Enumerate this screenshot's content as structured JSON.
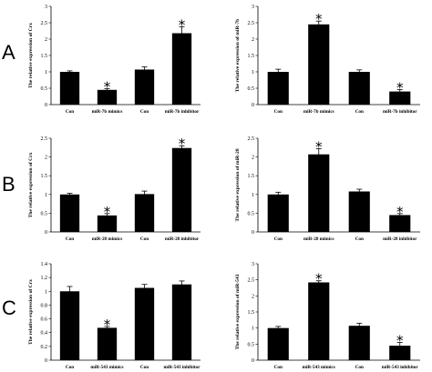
{
  "panel_labels": [
    "A",
    "B",
    "C"
  ],
  "chart_data": [
    {
      "type": "bar",
      "row": 0,
      "col": 0,
      "ylabel": "The relative expression of Crx",
      "ylim": [
        0,
        3
      ],
      "ticks": [
        "0",
        "0.5",
        "1",
        "1.5",
        "2",
        "2.5",
        "3"
      ],
      "categories": [
        "Con",
        "miR-7b mimics",
        "Con",
        "miR-7b inhibitor"
      ],
      "values": [
        1.0,
        0.45,
        1.07,
        2.18
      ],
      "errors": [
        0.03,
        0.04,
        0.08,
        0.2
      ],
      "significant": [
        false,
        true,
        false,
        true
      ],
      "star": "*"
    },
    {
      "type": "bar",
      "row": 0,
      "col": 1,
      "ylabel": "The relative expression of miR-7b",
      "ylim": [
        0,
        3
      ],
      "ticks": [
        "0",
        "0.5",
        "1",
        "1.5",
        "2",
        "2.5",
        "3"
      ],
      "categories": [
        "Con",
        "miR-7b mimics",
        "Con",
        "miR-7b inhibitor"
      ],
      "values": [
        1.0,
        2.45,
        1.0,
        0.4
      ],
      "errors": [
        0.08,
        0.1,
        0.06,
        0.06
      ],
      "significant": [
        false,
        true,
        false,
        true
      ],
      "star": "*"
    },
    {
      "type": "bar",
      "row": 1,
      "col": 0,
      "ylabel": "The relative expression of Crx",
      "ylim": [
        0,
        2.5
      ],
      "ticks": [
        "0",
        "0.5",
        "1",
        "1.5",
        "2",
        "2.5"
      ],
      "categories": [
        "Con",
        "miR-28 mimics",
        "Con",
        "miR-28 inhibitor"
      ],
      "values": [
        1.0,
        0.44,
        1.01,
        2.24
      ],
      "errors": [
        0.03,
        0.05,
        0.08,
        0.06
      ],
      "significant": [
        false,
        true,
        false,
        true
      ],
      "star": "*"
    },
    {
      "type": "bar",
      "row": 1,
      "col": 1,
      "ylabel": "The relative expression of miR-28",
      "ylim": [
        0,
        2.5
      ],
      "ticks": [
        "0",
        "0.5",
        "1",
        "1.5",
        "2",
        "2.5"
      ],
      "categories": [
        "Con",
        "miR-28 mimics",
        "Con",
        "miR-28 inhibitor"
      ],
      "values": [
        1.0,
        2.07,
        1.08,
        0.45
      ],
      "errors": [
        0.06,
        0.15,
        0.06,
        0.04
      ],
      "significant": [
        false,
        true,
        false,
        true
      ],
      "star": "*"
    },
    {
      "type": "bar",
      "row": 2,
      "col": 0,
      "ylabel": "The relative expression of Crx",
      "ylim": [
        0,
        1.4
      ],
      "ticks": [
        "0",
        "0.2",
        "0.4",
        "0.6",
        "0.8",
        "1",
        "1.2",
        "1.4"
      ],
      "categories": [
        "Con",
        "miR-543 mimics",
        "Con",
        "miR-543 inhibitor"
      ],
      "values": [
        1.0,
        0.47,
        1.05,
        1.1
      ],
      "errors": [
        0.07,
        0.02,
        0.05,
        0.05
      ],
      "significant": [
        false,
        true,
        false,
        false
      ],
      "star": "*"
    },
    {
      "type": "bar",
      "row": 2,
      "col": 1,
      "ylabel": "The relative expression of miR-543",
      "ylim": [
        0,
        3
      ],
      "ticks": [
        "0",
        "0.5",
        "1",
        "1.5",
        "2",
        "2.5",
        "3"
      ],
      "categories": [
        "Con",
        "miR-543 mimics",
        "Con",
        "miR-543 inhibitor"
      ],
      "values": [
        1.0,
        2.42,
        1.07,
        0.45
      ],
      "errors": [
        0.05,
        0.05,
        0.08,
        0.1
      ],
      "significant": [
        false,
        true,
        false,
        true
      ],
      "star": "*"
    }
  ]
}
